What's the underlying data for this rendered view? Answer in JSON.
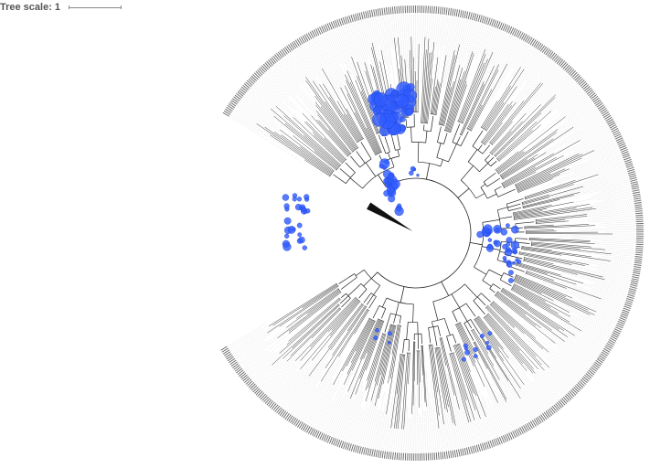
{
  "scale": {
    "label": "Tree scale: 1"
  },
  "tree": {
    "layout": "circular",
    "branch_color": "#222222",
    "label_color": "#666666",
    "guide_color": "#bbbbbb",
    "marker_color": "#2f5bff"
  }
}
